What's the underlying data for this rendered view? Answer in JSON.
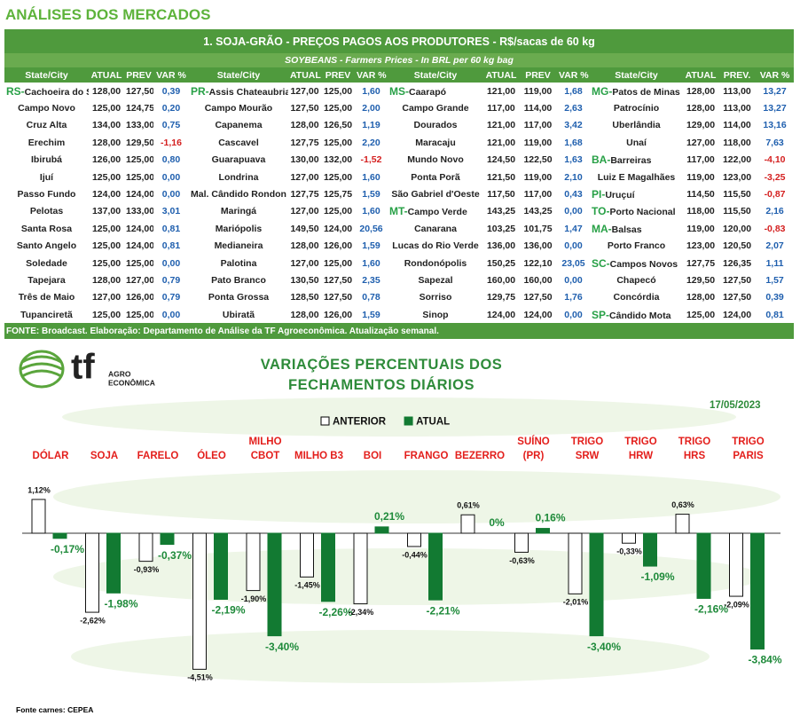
{
  "header": {
    "title": "ANÁLISES DOS MERCADOS"
  },
  "table": {
    "title": "1. SOJA-GRÃO - PREÇOS PAGOS AOS PRODUTORES - R$/sacas de 60 kg",
    "subtitle": "SOYBEANS - Farmers Prices - In BRL per 60 kg bag",
    "groups": [
      {
        "columns": [
          "State/City",
          "ATUAL",
          "PREV",
          "VAR %"
        ],
        "rows": [
          [
            "RS-",
            "Cachoeira do Sul",
            "128,00",
            "127,50",
            "0,39"
          ],
          [
            null,
            "Campo Novo",
            "125,00",
            "124,75",
            "0,20"
          ],
          [
            null,
            "Cruz Alta",
            "134,00",
            "133,00",
            "0,75"
          ],
          [
            null,
            "Erechim",
            "128,00",
            "129,50",
            "-1,16"
          ],
          [
            null,
            "Ibirubá",
            "126,00",
            "125,00",
            "0,80"
          ],
          [
            null,
            "Ijuí",
            "125,00",
            "125,00",
            "0,00"
          ],
          [
            null,
            "Passo Fundo",
            "124,00",
            "124,00",
            "0,00"
          ],
          [
            null,
            "Pelotas",
            "137,00",
            "133,00",
            "3,01"
          ],
          [
            null,
            "Santa Rosa",
            "125,00",
            "124,00",
            "0,81"
          ],
          [
            null,
            "Santo Angelo",
            "125,00",
            "124,00",
            "0,81"
          ],
          [
            null,
            "Soledade",
            "125,00",
            "125,00",
            "0,00"
          ],
          [
            null,
            "Tapejara",
            "128,00",
            "127,00",
            "0,79"
          ],
          [
            null,
            "Três de Maio",
            "127,00",
            "126,00",
            "0,79"
          ],
          [
            null,
            "Tupanciretã",
            "125,00",
            "125,00",
            "0,00"
          ]
        ]
      },
      {
        "columns": [
          "State/City",
          "ATUAL",
          "PREV",
          "VAR %"
        ],
        "rows": [
          [
            "PR-",
            "Assis Chateaubriand",
            "127,00",
            "125,00",
            "1,60"
          ],
          [
            null,
            "Campo Mourão",
            "127,50",
            "125,00",
            "2,00"
          ],
          [
            null,
            "Capanema",
            "128,00",
            "126,50",
            "1,19"
          ],
          [
            null,
            "Cascavel",
            "127,75",
            "125,00",
            "2,20"
          ],
          [
            null,
            "Guarapuava",
            "130,00",
            "132,00",
            "-1,52"
          ],
          [
            null,
            "Londrina",
            "127,00",
            "125,00",
            "1,60"
          ],
          [
            null,
            "Mal. Cândido Rondon",
            "127,75",
            "125,75",
            "1,59"
          ],
          [
            null,
            "Maringá",
            "127,00",
            "125,00",
            "1,60"
          ],
          [
            null,
            "Mariópolis",
            "149,50",
            "124,00",
            "20,56"
          ],
          [
            null,
            "Medianeira",
            "128,00",
            "126,00",
            "1,59"
          ],
          [
            null,
            "Palotina",
            "127,00",
            "125,00",
            "1,60"
          ],
          [
            null,
            "Pato Branco",
            "130,50",
            "127,50",
            "2,35"
          ],
          [
            null,
            "Ponta Grossa",
            "128,50",
            "127,50",
            "0,78"
          ],
          [
            null,
            "Ubiratã",
            "128,00",
            "126,00",
            "1,59"
          ]
        ]
      },
      {
        "columns": [
          "State/City",
          "ATUAL",
          "PREV",
          "VAR %"
        ],
        "rows": [
          [
            "MS-",
            "Caarapó",
            "121,00",
            "119,00",
            "1,68"
          ],
          [
            null,
            "Campo Grande",
            "117,00",
            "114,00",
            "2,63"
          ],
          [
            null,
            "Dourados",
            "121,00",
            "117,00",
            "3,42"
          ],
          [
            null,
            "Maracaju",
            "121,00",
            "119,00",
            "1,68"
          ],
          [
            null,
            "Mundo Novo",
            "124,50",
            "122,50",
            "1,63"
          ],
          [
            null,
            "Ponta Porã",
            "121,50",
            "119,00",
            "2,10"
          ],
          [
            null,
            "São Gabriel d'Oeste",
            "117,50",
            "117,00",
            "0,43"
          ],
          [
            "MT-",
            "Campo Verde",
            "143,25",
            "143,25",
            "0,00"
          ],
          [
            null,
            "Canarana",
            "103,25",
            "101,75",
            "1,47"
          ],
          [
            null,
            "Lucas do Rio Verde",
            "136,00",
            "136,00",
            "0,00"
          ],
          [
            null,
            "Rondonópolis",
            "150,25",
            "122,10",
            "23,05"
          ],
          [
            null,
            "Sapezal",
            "160,00",
            "160,00",
            "0,00"
          ],
          [
            null,
            "Sorriso",
            "129,75",
            "127,50",
            "1,76"
          ],
          [
            null,
            "Sinop",
            "124,00",
            "124,00",
            "0,00"
          ]
        ]
      },
      {
        "columns": [
          "State/City",
          "ATUAL",
          "PREV.",
          "VAR %"
        ],
        "rows": [
          [
            "MG-",
            "Patos de Minas",
            "128,00",
            "113,00",
            "13,27"
          ],
          [
            null,
            "Patrocínio",
            "128,00",
            "113,00",
            "13,27"
          ],
          [
            null,
            "Uberlândia",
            "129,00",
            "114,00",
            "13,16"
          ],
          [
            null,
            "Unaí",
            "127,00",
            "118,00",
            "7,63"
          ],
          [
            "BA-",
            "Barreiras",
            "117,00",
            "122,00",
            "-4,10"
          ],
          [
            null,
            "Luiz E Magalhães",
            "119,00",
            "123,00",
            "-3,25"
          ],
          [
            "PI-",
            "Uruçuí",
            "114,50",
            "115,50",
            "-0,87"
          ],
          [
            "TO-",
            "Porto Nacional",
            "118,00",
            "115,50",
            "2,16"
          ],
          [
            "MA-",
            "Balsas",
            "119,00",
            "120,00",
            "-0,83"
          ],
          [
            null,
            "Porto Franco",
            "123,00",
            "120,50",
            "2,07"
          ],
          [
            "SC-",
            "Campos Novos",
            "127,75",
            "126,35",
            "1,11"
          ],
          [
            null,
            "Chapecó",
            "129,50",
            "127,50",
            "1,57"
          ],
          [
            null,
            "Concórdia",
            "128,00",
            "127,50",
            "0,39"
          ],
          [
            "SP-",
            "Cândido Mota",
            "125,00",
            "124,00",
            "0,81"
          ]
        ]
      }
    ],
    "footer": "FONTE: Broadcast. Elaboração: Departamento de Análise da TF Agroeconômica. Atualização semanal."
  },
  "logo": {
    "mark": "tf",
    "line1": "AGRO",
    "line2": "ECONÔMICA"
  },
  "chart_data": {
    "type": "bar",
    "title": "VARIAÇÕES PERCENTUAIS DOS FECHAMENTOS DIÁRIOS",
    "date": "17/05/2023",
    "categories": [
      "DÓLAR",
      "SOJA",
      "FARELO",
      "ÓLEO",
      "MILHO CBOT",
      "MILHO B3",
      "BOI",
      "FRANGO",
      "BEZERRO",
      "SUÍNO (PR)",
      "TRIGO SRW",
      "TRIGO HRW",
      "TRIGO HRS",
      "TRIGO PARIS"
    ],
    "series": [
      {
        "name": "ANTERIOR",
        "color": "#ffffff",
        "values": [
          1.12,
          -2.62,
          -0.93,
          -4.51,
          -1.9,
          -1.45,
          -2.34,
          -0.44,
          0.61,
          -0.63,
          -2.01,
          -0.33,
          0.63,
          -2.09
        ],
        "value_labels": [
          "1,12%",
          "-2,62%",
          "-0,93%",
          "-4,51%",
          "-1,90%",
          "-1,45%",
          "-2,34%",
          "-0,44%",
          "0,61%",
          "-0,63%",
          "-2,01%",
          "-0,33%",
          "0,63%",
          "-2,09%"
        ]
      },
      {
        "name": "ATUAL",
        "color": "#127a32",
        "values": [
          -0.17,
          -1.98,
          -0.37,
          -2.19,
          -3.4,
          -2.26,
          0.21,
          -2.21,
          0,
          0.16,
          -3.4,
          -1.09,
          -2.16,
          -3.84
        ],
        "value_labels": [
          "-0,17%",
          "-1,98%",
          "-0,37%",
          "-2,19%",
          "-3,40%",
          "-2,26%",
          "0,21%",
          "-2,21%",
          "0%",
          "0,16%",
          "-3,40%",
          "-1,09%",
          "-2,16%",
          "-3,84%"
        ]
      }
    ]
  },
  "footnote": "Fonte carnes: CEPEA"
}
